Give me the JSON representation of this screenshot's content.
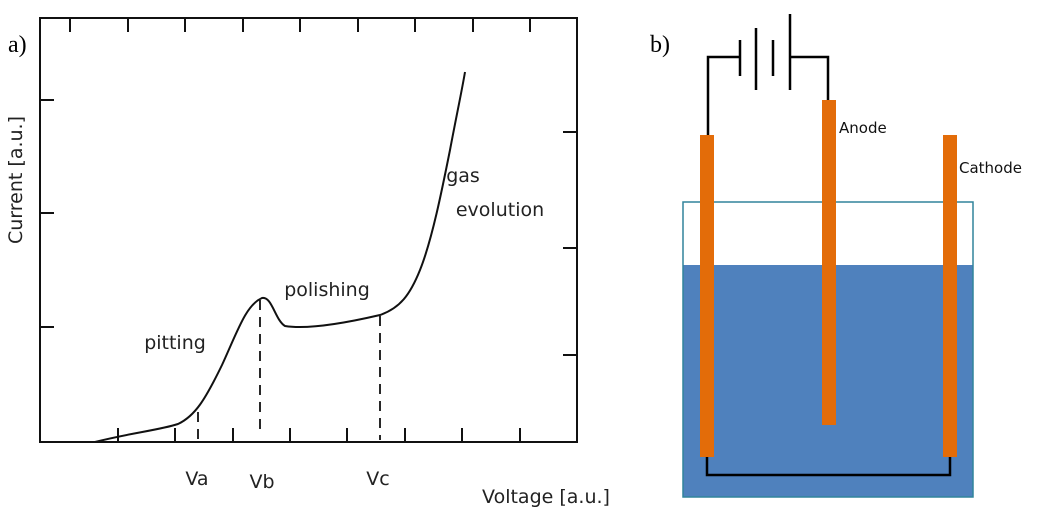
{
  "panel_a": {
    "label": "a)",
    "y_axis_label": "Current [a.u.]",
    "x_axis_label": "Voltage [a.u.]",
    "markers": [
      "Va",
      "Vb",
      "Vc"
    ],
    "regions": [
      "pitting",
      "polishing",
      "gas",
      "evolution"
    ]
  },
  "panel_b": {
    "label": "b)",
    "electrodes": [
      "Anode",
      "Cathode"
    ]
  }
}
